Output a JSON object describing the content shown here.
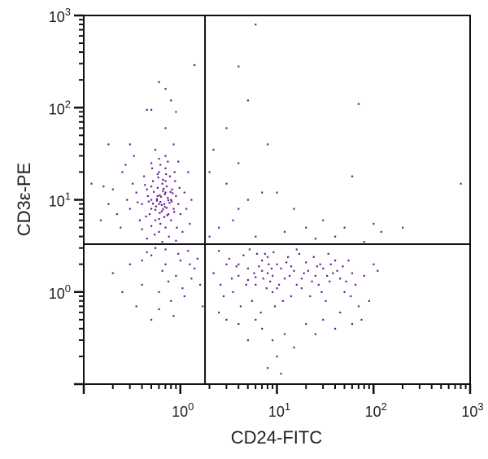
{
  "chart_data": {
    "type": "scatter",
    "title": "",
    "xlabel": "CD24-FITC",
    "ylabel": "CD3ε-PE",
    "xscale": "log",
    "yscale": "log",
    "xlim": [
      0.1,
      1000
    ],
    "ylim": [
      0.1,
      1000
    ],
    "x_tick_labels": [
      {
        "value": 1,
        "base": "10",
        "exp": "0"
      },
      {
        "value": 10,
        "base": "10",
        "exp": "1"
      },
      {
        "value": 100,
        "base": "10",
        "exp": "2"
      },
      {
        "value": 1000,
        "base": "10",
        "exp": "3"
      }
    ],
    "y_tick_labels": [
      {
        "value": 1,
        "base": "10",
        "exp": "0"
      },
      {
        "value": 10,
        "base": "10",
        "exp": "1"
      },
      {
        "value": 100,
        "base": "10",
        "exp": "2"
      },
      {
        "value": 1000,
        "base": "10",
        "exp": "3"
      }
    ],
    "grid": false,
    "legend": "none",
    "quadrant_gates": {
      "x": 1.8,
      "y": 3.3
    },
    "point_color": "#6b1f96",
    "line_color": "#111111",
    "points": [
      [
        0.6,
        9
      ],
      [
        0.7,
        12
      ],
      [
        0.5,
        8
      ],
      [
        0.8,
        10
      ],
      [
        0.65,
        15
      ],
      [
        0.55,
        6
      ],
      [
        0.75,
        7
      ],
      [
        0.9,
        11
      ],
      [
        0.45,
        13
      ],
      [
        0.6,
        20
      ],
      [
        0.7,
        5
      ],
      [
        0.5,
        10
      ],
      [
        0.85,
        8
      ],
      [
        0.62,
        9.5
      ],
      [
        0.72,
        14
      ],
      [
        0.58,
        11
      ],
      [
        0.68,
        6.5
      ],
      [
        0.4,
        9
      ],
      [
        0.95,
        9
      ],
      [
        0.52,
        16
      ],
      [
        0.78,
        18
      ],
      [
        0.6,
        4.5
      ],
      [
        0.35,
        12
      ],
      [
        0.3,
        8
      ],
      [
        0.48,
        7
      ],
      [
        0.66,
        12.5
      ],
      [
        0.74,
        10.5
      ],
      [
        0.56,
        8.5
      ],
      [
        0.82,
        13
      ],
      [
        0.64,
        7.5
      ],
      [
        0.7,
        22
      ],
      [
        0.5,
        25
      ],
      [
        0.42,
        18
      ],
      [
        0.88,
        16
      ],
      [
        1.0,
        7
      ],
      [
        1.1,
        12
      ],
      [
        0.62,
        5.5
      ],
      [
        0.76,
        4
      ],
      [
        0.54,
        4.2
      ],
      [
        0.38,
        6
      ],
      [
        0.32,
        15
      ],
      [
        0.28,
        10
      ],
      [
        0.25,
        20
      ],
      [
        0.22,
        7
      ],
      [
        0.2,
        13
      ],
      [
        0.46,
        11
      ],
      [
        0.58,
        13.5
      ],
      [
        0.68,
        9
      ],
      [
        0.8,
        6
      ],
      [
        0.92,
        5
      ],
      [
        0.6,
        28
      ],
      [
        0.7,
        30
      ],
      [
        0.55,
        35
      ],
      [
        0.85,
        40
      ],
      [
        0.45,
        3.8
      ],
      [
        0.65,
        3.5
      ],
      [
        0.9,
        3.6
      ],
      [
        1.05,
        4.5
      ],
      [
        1.15,
        8
      ],
      [
        0.4,
        4.8
      ],
      [
        0.5,
        5.2
      ],
      [
        0.72,
        8.2
      ],
      [
        0.63,
        10.8
      ],
      [
        0.57,
        9.8
      ],
      [
        0.69,
        11.5
      ],
      [
        0.61,
        7.2
      ],
      [
        0.77,
        9.3
      ],
      [
        0.53,
        12.2
      ],
      [
        0.47,
        9.6
      ],
      [
        0.83,
        11.8
      ],
      [
        0.66,
        16.5
      ],
      [
        0.59,
        17.5
      ],
      [
        0.71,
        19
      ],
      [
        0.43,
        14.5
      ],
      [
        0.36,
        9.4
      ],
      [
        0.98,
        13.5
      ],
      [
        0.87,
        20
      ],
      [
        0.51,
        22
      ],
      [
        0.62,
        24
      ],
      [
        0.74,
        26
      ],
      [
        0.18,
        9
      ],
      [
        0.16,
        14
      ],
      [
        0.15,
        6
      ],
      [
        0.24,
        5
      ],
      [
        0.27,
        24
      ],
      [
        0.33,
        30
      ],
      [
        1.2,
        20
      ],
      [
        1.3,
        10
      ],
      [
        1.25,
        5.5
      ],
      [
        0.95,
        26
      ],
      [
        0.67,
        13.2
      ],
      [
        0.6,
        6.2
      ],
      [
        0.73,
        6.8
      ],
      [
        0.55,
        7.8
      ],
      [
        0.79,
        12.2
      ],
      [
        0.64,
        8.8
      ],
      [
        0.5,
        14
      ],
      [
        0.7,
        16
      ],
      [
        0.58,
        19
      ],
      [
        0.44,
        6.6
      ],
      [
        0.86,
        7.4
      ],
      [
        0.61,
        11.2
      ],
      [
        0.69,
        8.4
      ],
      [
        0.57,
        10.2
      ],
      [
        0.75,
        9.9
      ],
      [
        0.52,
        9.1
      ],
      [
        0.66,
        7.9
      ],
      [
        0.81,
        9.6
      ],
      [
        0.5,
        2.5
      ],
      [
        0.7,
        2.0
      ],
      [
        0.9,
        1.5
      ],
      [
        1.2,
        2.8
      ],
      [
        0.4,
        1.2
      ],
      [
        0.6,
        1.0
      ],
      [
        1.4,
        1.8
      ],
      [
        0.8,
        0.8
      ],
      [
        1.0,
        2.2
      ],
      [
        0.3,
        2.0
      ],
      [
        0.55,
        3.0
      ],
      [
        1.6,
        1.2
      ],
      [
        0.35,
        0.7
      ],
      [
        0.75,
        1.3
      ],
      [
        1.1,
        0.9
      ],
      [
        0.45,
        2.7
      ],
      [
        0.95,
        2.6
      ],
      [
        1.3,
        1.4
      ],
      [
        0.65,
        1.7
      ],
      [
        0.25,
        1.0
      ],
      [
        0.2,
        1.6
      ],
      [
        0.85,
        0.55
      ],
      [
        0.5,
        0.5
      ],
      [
        1.5,
        2.3
      ],
      [
        1.7,
        0.7
      ],
      [
        0.7,
        2.9
      ],
      [
        0.4,
        2.2
      ],
      [
        1.05,
        1.1
      ],
      [
        0.6,
        0.65
      ],
      [
        1.25,
        2.0
      ],
      [
        3,
        2
      ],
      [
        4,
        1.5
      ],
      [
        5,
        1.8
      ],
      [
        6,
        1.2
      ],
      [
        7,
        2.2
      ],
      [
        8,
        1.6
      ],
      [
        9,
        1.0
      ],
      [
        10,
        2.0
      ],
      [
        12,
        1.4
      ],
      [
        15,
        1.7
      ],
      [
        18,
        1.1
      ],
      [
        20,
        2.1
      ],
      [
        25,
        1.5
      ],
      [
        30,
        1.8
      ],
      [
        35,
        1.3
      ],
      [
        40,
        2.2
      ],
      [
        50,
        1.0
      ],
      [
        60,
        1.6
      ],
      [
        2.5,
        2.8
      ],
      [
        3.5,
        1.0
      ],
      [
        4.5,
        2.5
      ],
      [
        5.5,
        0.8
      ],
      [
        6.5,
        1.9
      ],
      [
        7.5,
        2.6
      ],
      [
        8.5,
        1.3
      ],
      [
        9.5,
        0.7
      ],
      [
        11,
        1.8
      ],
      [
        13,
        2.4
      ],
      [
        14,
        0.9
      ],
      [
        16,
        1.2
      ],
      [
        2.2,
        1.6
      ],
      [
        2.8,
        0.9
      ],
      [
        3.2,
        2.3
      ],
      [
        3.8,
        1.9
      ],
      [
        4.2,
        0.7
      ],
      [
        4.8,
        1.2
      ],
      [
        5.2,
        2.9
      ],
      [
        5.8,
        1.6
      ],
      [
        6.2,
        2.6
      ],
      [
        6.8,
        0.6
      ],
      [
        7.2,
        1.4
      ],
      [
        7.8,
        1.1
      ],
      [
        8.2,
        2.0
      ],
      [
        8.8,
        1.8
      ],
      [
        9.2,
        2.7
      ],
      [
        10.5,
        1.2
      ],
      [
        11.5,
        0.8
      ],
      [
        12.5,
        2.1
      ],
      [
        13.5,
        1.5
      ],
      [
        17,
        2.6
      ],
      [
        19,
        1.6
      ],
      [
        22,
        0.9
      ],
      [
        24,
        2.4
      ],
      [
        27,
        1.2
      ],
      [
        28,
        2.0
      ],
      [
        32,
        0.8
      ],
      [
        34,
        2.6
      ],
      [
        38,
        1.6
      ],
      [
        45,
        1.4
      ],
      [
        55,
        2.2
      ],
      [
        65,
        1.2
      ],
      [
        70,
        0.7
      ],
      [
        80,
        1.5
      ],
      [
        75,
        0.5
      ],
      [
        45,
        0.6
      ],
      [
        30,
        0.5
      ],
      [
        20,
        0.45
      ],
      [
        12,
        0.35
      ],
      [
        9,
        0.3
      ],
      [
        7,
        0.4
      ],
      [
        15,
        0.25
      ],
      [
        10,
        0.2
      ],
      [
        8,
        0.15
      ],
      [
        11,
        0.13
      ],
      [
        5,
        0.3
      ],
      [
        25,
        0.35
      ],
      [
        40,
        0.4
      ],
      [
        60,
        0.45
      ],
      [
        3,
        0.5
      ],
      [
        2.5,
        0.6
      ],
      [
        4,
        0.45
      ],
      [
        6,
        0.5
      ],
      [
        6,
        1.45
      ],
      [
        7,
        1.7
      ],
      [
        5,
        1.35
      ],
      [
        8,
        2.4
      ],
      [
        9,
        1.5
      ],
      [
        10,
        1.1
      ],
      [
        4,
        2.0
      ],
      [
        3.4,
        1.4
      ],
      [
        2.6,
        1.2
      ],
      [
        14,
        1.9
      ],
      [
        16,
        2.9
      ],
      [
        18,
        1.4
      ],
      [
        21,
        1.7
      ],
      [
        23,
        1.3
      ],
      [
        26,
        1.9
      ],
      [
        29,
        1.0
      ],
      [
        33,
        1.5
      ],
      [
        36,
        2.0
      ],
      [
        42,
        1.7
      ],
      [
        48,
        1.9
      ],
      [
        52,
        1.3
      ],
      [
        58,
        0.9
      ],
      [
        100,
        2.0
      ],
      [
        110,
        1.7
      ],
      [
        90,
        0.8
      ],
      [
        2,
        20
      ],
      [
        3,
        15
      ],
      [
        5,
        10
      ],
      [
        4,
        25
      ],
      [
        8,
        40
      ],
      [
        10,
        12
      ],
      [
        15,
        8
      ],
      [
        20,
        5
      ],
      [
        30,
        6
      ],
      [
        40,
        4
      ],
      [
        60,
        18
      ],
      [
        80,
        3.5
      ],
      [
        120,
        4.5
      ],
      [
        200,
        5
      ],
      [
        3,
        60
      ],
      [
        5,
        120
      ],
      [
        4,
        280
      ],
      [
        6,
        800
      ],
      [
        70,
        110
      ],
      [
        800,
        15
      ],
      [
        2.5,
        5
      ],
      [
        3.5,
        6
      ],
      [
        6,
        4
      ],
      [
        12,
        4.5
      ],
      [
        25,
        3.8
      ],
      [
        50,
        5
      ],
      [
        100,
        5.5
      ],
      [
        4,
        8
      ],
      [
        2.2,
        35
      ],
      [
        7,
        12
      ],
      [
        2,
        4
      ],
      [
        1.4,
        290
      ],
      [
        0.6,
        190
      ],
      [
        0.7,
        160
      ],
      [
        0.8,
        120
      ],
      [
        0.5,
        95
      ],
      [
        0.45,
        95
      ],
      [
        0.9,
        90
      ],
      [
        0.7,
        60
      ],
      [
        0.3,
        40
      ],
      [
        0.18,
        40
      ],
      [
        0.12,
        15
      ]
    ]
  }
}
